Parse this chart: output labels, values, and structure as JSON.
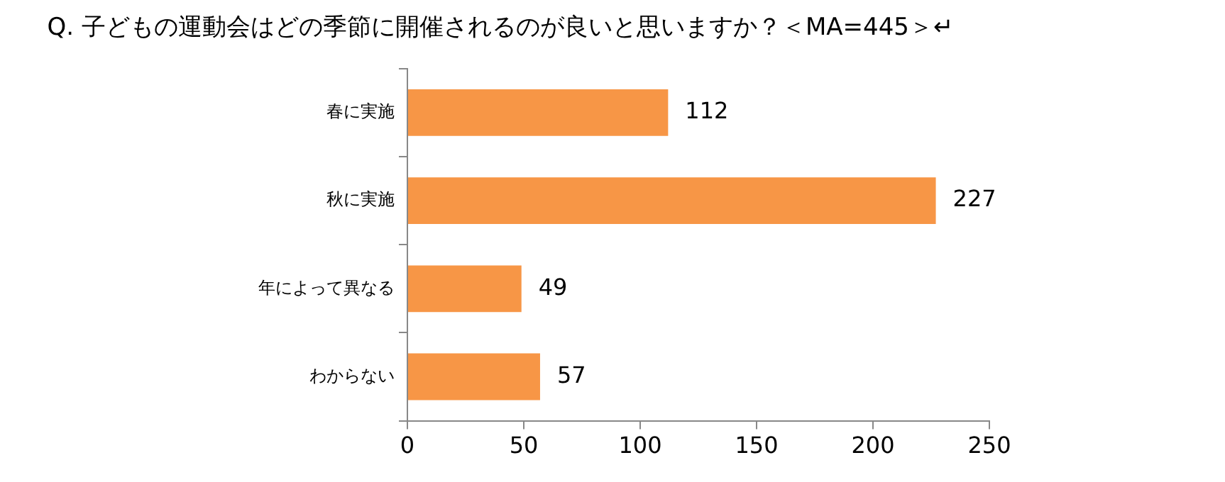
{
  "chart_data": {
    "type": "bar",
    "orientation": "horizontal",
    "title": "Q. 子どもの運動会はどの季節に開催されるのが良いと思いますか？＜MA=445＞↵",
    "categories": [
      "春に実施",
      "秋に実施",
      "年によって異なる",
      "わからない"
    ],
    "values": [
      112,
      227,
      49,
      57
    ],
    "color": "#f79646",
    "xlim": [
      0,
      250
    ],
    "xticks": [
      0,
      50,
      100,
      150,
      200,
      250
    ],
    "data_labels": true,
    "grid": false,
    "legend": false
  }
}
